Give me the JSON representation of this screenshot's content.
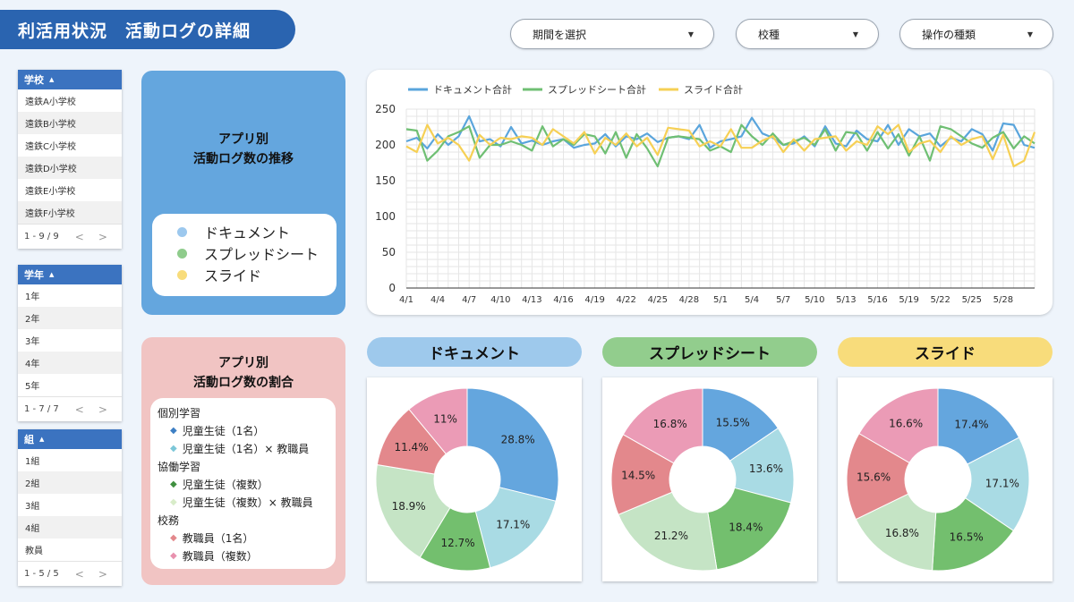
{
  "header": {
    "title": "利活用状況　活動ログの詳細"
  },
  "controls": [
    {
      "label": "期間を選択"
    },
    {
      "label": "校種"
    },
    {
      "label": "操作の種類"
    }
  ],
  "filters": {
    "school": {
      "header": "学校",
      "items": [
        "遠鉄A小学校",
        "遠鉄B小学校",
        "遠鉄C小学校",
        "遠鉄D小学校",
        "遠鉄E小学校",
        "遠鉄F小学校"
      ],
      "pagination": "1 - 9 / 9"
    },
    "grade": {
      "header": "学年",
      "items": [
        "1年",
        "2年",
        "3年",
        "4年",
        "5年"
      ],
      "pagination": "1 - 7 / 7"
    },
    "class": {
      "header": "組",
      "items": [
        "1組",
        "2組",
        "3組",
        "4組",
        "教員"
      ],
      "pagination": "1 - 5 / 5"
    }
  },
  "trend_card": {
    "title_line1": "アプリ別",
    "title_line2": "活動ログ数の推移",
    "legend": [
      "ドキュメント",
      "スプレッドシート",
      "スライド"
    ]
  },
  "share_card": {
    "title_line1": "アプリ別",
    "title_line2": "活動ログ数の割合",
    "groups": [
      {
        "name": "個別学習",
        "items": [
          "児童生徒（1名）",
          "児童生徒（1名）× 教職員"
        ]
      },
      {
        "name": "協働学習",
        "items": [
          "児童生徒（複数）",
          "児童生徒（複数）× 教職員"
        ]
      },
      {
        "name": "校務",
        "items": [
          "教職員（1名）",
          "教職員（複数）"
        ]
      }
    ]
  },
  "pie_titles": [
    "ドキュメント",
    "スプレッドシート",
    "スライド"
  ],
  "colors": {
    "document": "#5aa5dc",
    "spreadsheet": "#6fbf73",
    "slide": "#f6d055",
    "seg_individual": "#64a6de",
    "seg_individual_staff": "#a9dbe4",
    "seg_collab": "#73bf6e",
    "seg_collab_staff": "#c5e4c5",
    "seg_staff": "#e3888c",
    "seg_staff_multi": "#eb9bb6"
  },
  "chart_data": [
    {
      "type": "line",
      "x": [
        "4/1",
        "4/2",
        "4/3",
        "4/4",
        "4/5",
        "4/6",
        "4/7",
        "4/8",
        "4/9",
        "4/10",
        "4/11",
        "4/12",
        "4/13",
        "4/14",
        "4/15",
        "4/16",
        "4/17",
        "4/18",
        "4/19",
        "4/20",
        "4/21",
        "4/22",
        "4/23",
        "4/24",
        "4/25",
        "4/26",
        "4/27",
        "4/28",
        "4/29",
        "4/30",
        "5/1",
        "5/2",
        "5/3",
        "5/4",
        "5/5",
        "5/6",
        "5/7",
        "5/8",
        "5/9",
        "5/10",
        "5/11",
        "5/12",
        "5/13",
        "5/14",
        "5/15",
        "5/16",
        "5/17",
        "5/18",
        "5/19",
        "5/20",
        "5/21",
        "5/22",
        "5/23",
        "5/24",
        "5/25",
        "5/26",
        "5/27",
        "5/28",
        "5/29",
        "5/30",
        "5/31"
      ],
      "x_ticks": [
        "4/1",
        "4/4",
        "4/7",
        "4/10",
        "4/13",
        "4/16",
        "4/19",
        "4/22",
        "4/25",
        "4/28",
        "5/1",
        "5/4",
        "5/7",
        "5/10",
        "5/13",
        "5/16",
        "5/19",
        "5/22",
        "5/25",
        "5/28"
      ],
      "ylim": [
        0,
        250
      ],
      "y_ticks": [
        0,
        50,
        100,
        150,
        200,
        250
      ],
      "grid": true,
      "legend_position": "top-left",
      "series": [
        {
          "name": "ドキュメント合計",
          "color": "#5aa5dc",
          "values": [
            205,
            210,
            195,
            215,
            200,
            212,
            240,
            205,
            208,
            198,
            225,
            202,
            206,
            200,
            205,
            208,
            196,
            200,
            202,
            215,
            198,
            212,
            208,
            216,
            204,
            210,
            212,
            208,
            228,
            196,
            205,
            208,
            212,
            238,
            216,
            210,
            200,
            202,
            212,
            198,
            226,
            202,
            198,
            220,
            208,
            205,
            228,
            200,
            222,
            212,
            216,
            198,
            210,
            205,
            222,
            215,
            192,
            230,
            228,
            200,
            196
          ]
        },
        {
          "name": "スプレッドシート合計",
          "color": "#6fbf73",
          "values": [
            222,
            220,
            178,
            192,
            212,
            218,
            226,
            182,
            200,
            200,
            205,
            200,
            192,
            226,
            198,
            208,
            200,
            215,
            212,
            188,
            218,
            182,
            215,
            195,
            170,
            210,
            212,
            210,
            208,
            192,
            198,
            190,
            228,
            212,
            200,
            216,
            200,
            205,
            210,
            200,
            222,
            192,
            218,
            216,
            192,
            218,
            195,
            215,
            185,
            212,
            178,
            226,
            222,
            212,
            202,
            196,
            210,
            218,
            195,
            212,
            202
          ]
        },
        {
          "name": "スライド合計",
          "color": "#f6d055",
          "values": [
            198,
            190,
            228,
            202,
            210,
            200,
            178,
            214,
            200,
            210,
            208,
            212,
            210,
            200,
            222,
            212,
            202,
            218,
            188,
            210,
            200,
            216,
            198,
            210,
            186,
            224,
            222,
            220,
            198,
            205,
            198,
            222,
            196,
            196,
            206,
            212,
            190,
            208,
            192,
            208,
            210,
            212,
            192,
            205,
            200,
            226,
            215,
            228,
            190,
            202,
            206,
            190,
            212,
            200,
            208,
            212,
            180,
            214,
            170,
            178,
            218
          ]
        }
      ]
    },
    {
      "type": "pie",
      "title": "ドキュメント",
      "labels": [
        "児童生徒（1名）",
        "児童生徒（1名）× 教職員",
        "児童生徒（複数）",
        "児童生徒（複数）× 教職員",
        "教職員（1名）",
        "教職員（複数）"
      ],
      "values": [
        28.8,
        17.1,
        12.7,
        18.9,
        11.4,
        11
      ],
      "value_labels": [
        "28.8%",
        "17.1%",
        "12.7%",
        "18.9%",
        "11.4%",
        "11%"
      ]
    },
    {
      "type": "pie",
      "title": "スプレッドシート",
      "labels": [
        "児童生徒（1名）",
        "児童生徒（1名）× 教職員",
        "児童生徒（複数）",
        "児童生徒（複数）× 教職員",
        "教職員（1名）",
        "教職員（複数）"
      ],
      "values": [
        15.5,
        13.6,
        18.4,
        21.2,
        14.5,
        16.8
      ],
      "value_labels": [
        "15.5%",
        "13.6%",
        "18.4%",
        "21.2%",
        "14.5%",
        "16.8%"
      ]
    },
    {
      "type": "pie",
      "title": "スライド",
      "labels": [
        "児童生徒（1名）",
        "児童生徒（1名）× 教職員",
        "児童生徒（複数）",
        "児童生徒（複数）× 教職員",
        "教職員（1名）",
        "教職員（複数）"
      ],
      "values": [
        17.4,
        17.1,
        16.5,
        16.8,
        15.6,
        16.6
      ],
      "value_labels": [
        "17.4%",
        "17.1%",
        "16.5%",
        "16.8%",
        "15.6%",
        "16.6%"
      ]
    }
  ]
}
